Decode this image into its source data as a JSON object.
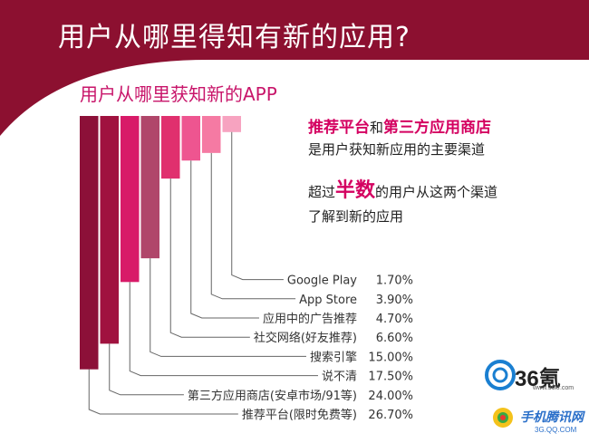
{
  "slide": {
    "title": "用户从哪里得知有新的应用?"
  },
  "notes": {
    "line1_part1": "推荐平台",
    "line1_part2": "和",
    "line1_part3": "第三方应用商店",
    "line2": "是用户获知新应用的主要渠道",
    "line3_part1": "超过",
    "line3_part2": "半数",
    "line3_part3": "的用户从这两个渠道",
    "line4": "了解到新的应用"
  },
  "logos": {
    "logo_36_text": "36氪",
    "logo_36_url": "www.36kr.com",
    "logo_tc_text": "手机腾讯网",
    "logo_tc_url": "3G.QQ.COM"
  },
  "colors": {
    "header": "#8c1030",
    "accent": "#d40060",
    "line": "#666666"
  },
  "chart_data": {
    "type": "bar",
    "title": "用户从哪里获知新的APP",
    "categories": [
      "推荐平台(限时免费等)",
      "第三方应用商店(安卓市场/91等)",
      "说不清",
      "搜索引擎",
      "社交网络(好友推荐)",
      "应用中的广告推荐",
      "App Store",
      "Google Play"
    ],
    "values": [
      26.7,
      24.0,
      17.5,
      15.0,
      6.6,
      4.7,
      3.9,
      1.7
    ],
    "value_labels": [
      "26.70%",
      "24.00%",
      "17.50%",
      "15.00%",
      "6.60%",
      "4.70%",
      "3.90%",
      "1.70%"
    ],
    "colors": [
      "#8c1038",
      "#a0123f",
      "#d81a68",
      "#b0466a",
      "#e0306e",
      "#ee5590",
      "#f57aa3",
      "#f7a3c0"
    ]
  }
}
